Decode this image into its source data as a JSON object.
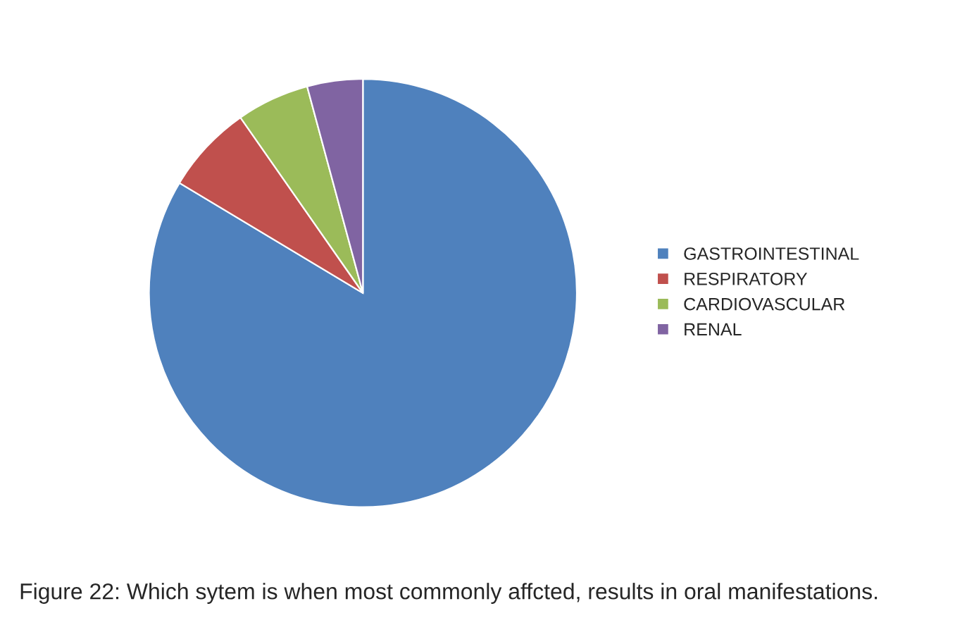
{
  "chart_data": {
    "type": "pie",
    "categories": [
      "GASTROINTESTINAL",
      "RESPIRATORY",
      "CARDIOVASCULAR",
      "RENAL"
    ],
    "values": [
      83.6,
      6.7,
      5.5,
      4.2
    ],
    "colors": [
      "#4f81bd",
      "#c0504d",
      "#9bbb59",
      "#8064a2"
    ],
    "legend": "right",
    "annotations": [
      "Figure 22: Which sytem is when most commonly affcted, results in oral manifestations."
    ]
  }
}
